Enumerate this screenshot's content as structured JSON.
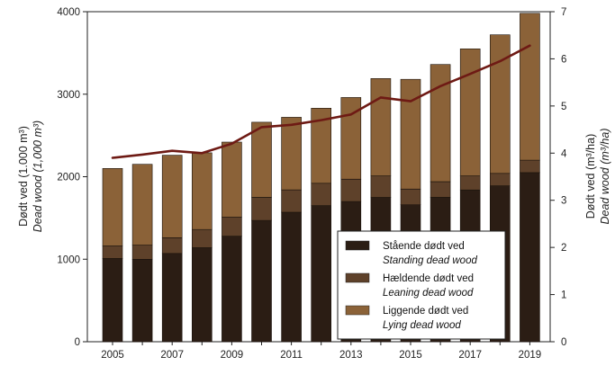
{
  "chart_data": {
    "type": "bar",
    "stacked": true,
    "categories": [
      "2005",
      "2006",
      "2007",
      "2008",
      "2009",
      "2010",
      "2011",
      "2012",
      "2013",
      "2014",
      "2015",
      "2016",
      "2017",
      "2018",
      "2019"
    ],
    "x_tick_labels": [
      "2005",
      "2007",
      "2009",
      "2011",
      "2013",
      "2015",
      "2017",
      "2019"
    ],
    "series": [
      {
        "name": "Stående dødt ved",
        "name_en": "Standing dead wood",
        "color": "#2b1d14",
        "values": [
          1010,
          1000,
          1070,
          1140,
          1280,
          1470,
          1570,
          1650,
          1700,
          1750,
          1660,
          1750,
          1840,
          1890,
          2050
        ]
      },
      {
        "name": "Hældende dødt ved",
        "name_en": "Leaning dead wood",
        "color": "#5e412a",
        "values": [
          150,
          170,
          190,
          220,
          230,
          280,
          270,
          270,
          270,
          260,
          190,
          190,
          170,
          150,
          150
        ]
      },
      {
        "name": "Liggende dødt ved",
        "name_en": "Lying dead wood",
        "color": "#8b6238",
        "values": [
          940,
          980,
          1000,
          930,
          910,
          910,
          880,
          910,
          990,
          1180,
          1330,
          1420,
          1540,
          1680,
          1780
        ]
      }
    ],
    "line": {
      "color": "#6e1a14",
      "axis": "right",
      "values": [
        3.9,
        3.97,
        4.05,
        4.0,
        4.2,
        4.55,
        4.6,
        4.7,
        4.82,
        5.18,
        5.1,
        5.42,
        5.68,
        5.95,
        6.28
      ]
    },
    "left_axis": {
      "ylim": [
        0,
        4000
      ],
      "ticks": [
        "0",
        "1000",
        "2000",
        "3000",
        "4000"
      ],
      "label_line1": "Dødt ved (1.000 m³)",
      "label_line2": "Dead wood (1,000 m³)"
    },
    "right_axis": {
      "ylim": [
        0,
        7
      ],
      "ticks": [
        "0",
        "1",
        "2",
        "3",
        "4",
        "5",
        "6",
        "7"
      ],
      "label_line1": "Dødt ved (m³/ha)",
      "label_line2": "Dead wood (m³/ha)"
    },
    "legend": {
      "placement": "bottom-right"
    }
  }
}
